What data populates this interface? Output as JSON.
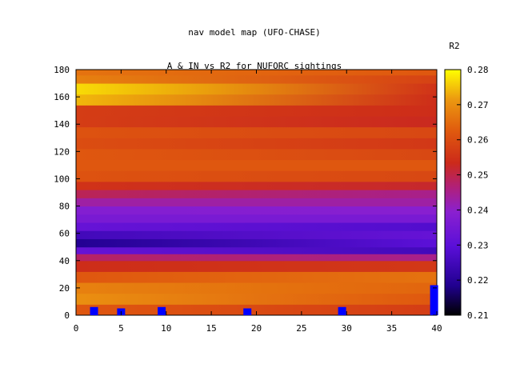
{
  "chart_data": {
    "type": "heatmap",
    "title": "nav model map (UFO-CHASE)",
    "subtitle": "A & IN vs R2 for NUFORC sightings",
    "xlabel": "",
    "ylabel": "",
    "xlim": [
      0,
      40
    ],
    "ylim": [
      0,
      180
    ],
    "x_ticks": [
      "0",
      "5",
      "10",
      "15",
      "20",
      "25",
      "30",
      "35",
      "40"
    ],
    "y_ticks": [
      "0",
      "20",
      "40",
      "60",
      "80",
      "100",
      "120",
      "140",
      "160",
      "180"
    ],
    "colorbar": {
      "label": "R2",
      "range": [
        0.21,
        0.28
      ],
      "ticks": [
        "0.21",
        "0.22",
        "0.23",
        "0.24",
        "0.25",
        "0.26",
        "0.27",
        "0.28"
      ]
    },
    "grid": false,
    "heatmap_bands": [
      {
        "y": 0,
        "left": 0.262,
        "right": 0.257
      },
      {
        "y": 8,
        "left": 0.27,
        "right": 0.262
      },
      {
        "y": 16,
        "left": 0.268,
        "right": 0.264
      },
      {
        "y": 24,
        "left": 0.262,
        "right": 0.266
      },
      {
        "y": 32,
        "left": 0.254,
        "right": 0.256
      },
      {
        "y": 40,
        "left": 0.248,
        "right": 0.245
      },
      {
        "y": 45,
        "left": 0.232,
        "right": 0.225
      },
      {
        "y": 50,
        "left": 0.219,
        "right": 0.23
      },
      {
        "y": 56,
        "left": 0.225,
        "right": 0.232
      },
      {
        "y": 62,
        "left": 0.232,
        "right": 0.228
      },
      {
        "y": 68,
        "left": 0.236,
        "right": 0.236
      },
      {
        "y": 74,
        "left": 0.238,
        "right": 0.239
      },
      {
        "y": 80,
        "left": 0.243,
        "right": 0.243
      },
      {
        "y": 86,
        "left": 0.249,
        "right": 0.245
      },
      {
        "y": 92,
        "left": 0.255,
        "right": 0.252
      },
      {
        "y": 98,
        "left": 0.261,
        "right": 0.259
      },
      {
        "y": 106,
        "left": 0.262,
        "right": 0.262
      },
      {
        "y": 114,
        "left": 0.262,
        "right": 0.259
      },
      {
        "y": 122,
        "left": 0.26,
        "right": 0.256
      },
      {
        "y": 130,
        "left": 0.261,
        "right": 0.259
      },
      {
        "y": 138,
        "left": 0.257,
        "right": 0.253
      },
      {
        "y": 146,
        "left": 0.257,
        "right": 0.254
      },
      {
        "y": 154,
        "left": 0.274,
        "right": 0.254
      },
      {
        "y": 162,
        "left": 0.277,
        "right": 0.255
      },
      {
        "y": 170,
        "left": 0.268,
        "right": 0.258
      },
      {
        "y": 176,
        "left": 0.266,
        "right": 0.262
      }
    ],
    "overlay_bars": {
      "color": "#0000ff",
      "points": [
        {
          "x": 2,
          "y": 6
        },
        {
          "x": 5,
          "y": 5
        },
        {
          "x": 9.5,
          "y": 6
        },
        {
          "x": 19,
          "y": 5
        },
        {
          "x": 29.5,
          "y": 6
        },
        {
          "x": 39.7,
          "y": 22
        }
      ]
    }
  }
}
